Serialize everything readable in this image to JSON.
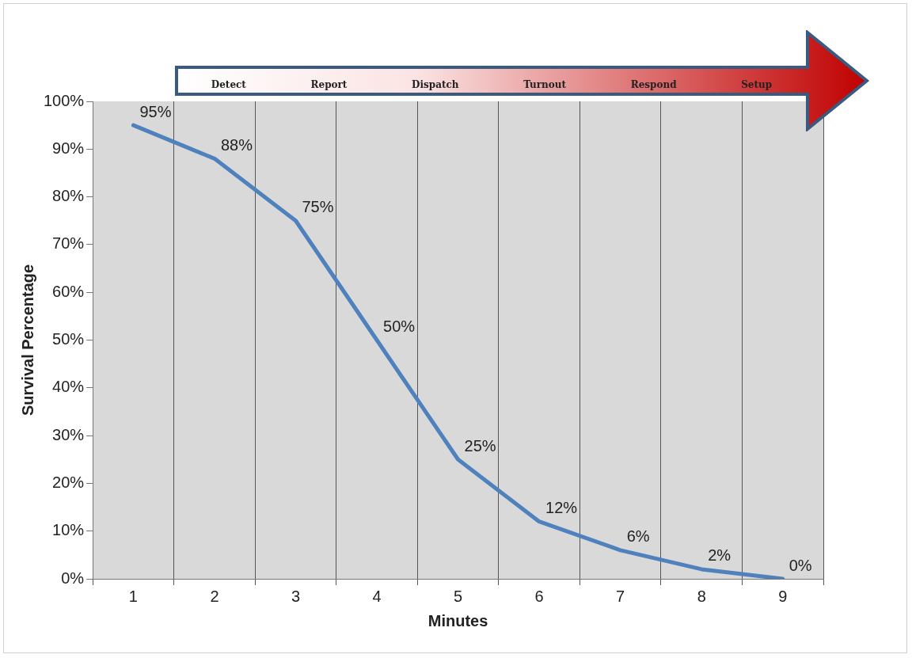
{
  "chart_data": {
    "type": "line",
    "xlabel": "Minutes",
    "ylabel": "Survival Percentage",
    "categories": [
      "1",
      "2",
      "3",
      "4",
      "5",
      "6",
      "7",
      "8",
      "9"
    ],
    "series": [
      {
        "color": "#4f81bd",
        "values": [
          95,
          88,
          75,
          50,
          25,
          12,
          6,
          2,
          0
        ],
        "value_labels": [
          "95%",
          "88%",
          "75%",
          "50%",
          "25%",
          "12%",
          "6%",
          "2%",
          "0%"
        ]
      }
    ],
    "ylim": [
      0,
      100
    ],
    "yticks": [
      {
        "value": 0,
        "label": "0%"
      },
      {
        "value": 10,
        "label": "10%"
      },
      {
        "value": 20,
        "label": "20%"
      },
      {
        "value": 30,
        "label": "30%"
      },
      {
        "value": 40,
        "label": "40%"
      },
      {
        "value": 50,
        "label": "50%"
      },
      {
        "value": 60,
        "label": "60%"
      },
      {
        "value": 70,
        "label": "70%"
      },
      {
        "value": 80,
        "label": "80%"
      },
      {
        "value": 90,
        "label": "90%"
      },
      {
        "value": 100,
        "label": "100%"
      }
    ],
    "grid": "x",
    "legend": false,
    "marker": "none",
    "line_style": "solid",
    "annotations": [
      "Detect",
      "Report",
      "Dispatch",
      "Turnout",
      "Respond",
      "Setup"
    ]
  }
}
